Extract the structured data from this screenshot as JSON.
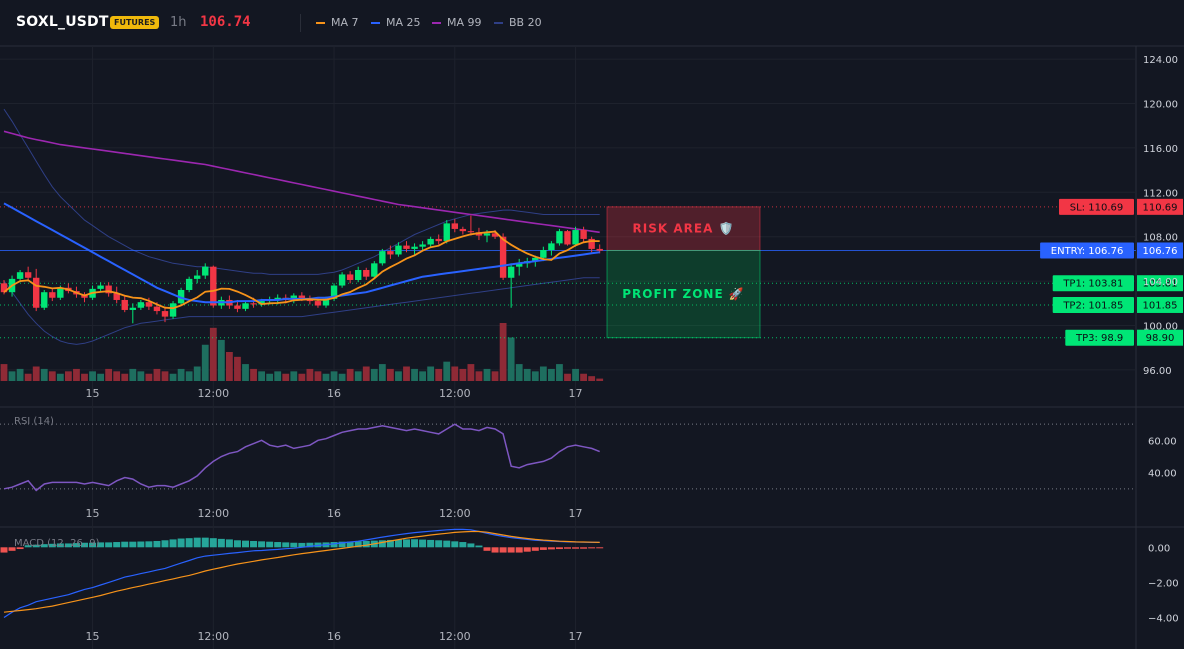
{
  "header": {
    "symbol": "SOXL_USDT",
    "badge": "FUTURES",
    "timeframe": "1h",
    "price": "106.74",
    "legend": [
      {
        "label": "MA 7",
        "color": "#f7931a"
      },
      {
        "label": "MA 25",
        "color": "#2962ff"
      },
      {
        "label": "MA 99",
        "color": "#9c27b0"
      },
      {
        "label": "BB 20",
        "color": "#2f3f86"
      }
    ]
  },
  "colors": {
    "background": "#131722",
    "up": "#00e676",
    "down": "#f23645",
    "vol_up": "#1e6e5f",
    "vol_down": "#8f2a36",
    "rsi": "#7e57c2",
    "macd": "#2962ff",
    "signal": "#f7931a",
    "hist_pos": "#26a69a",
    "hist_neg": "#ef5350"
  },
  "annotations": {
    "risk_label": "RISK AREA 🛡️",
    "profit_label": "PROFIT ZONE 🚀",
    "levels": [
      {
        "label": "SL: 110.69",
        "value": 110.69,
        "tag": "110.69",
        "color": "#f23645",
        "line": "#f23645"
      },
      {
        "label": "ENTRY: 106.76",
        "value": 106.76,
        "tag": "106.76",
        "color": "#2962ff",
        "line": "#2962ff"
      },
      {
        "label": "TP1: 103.81",
        "value": 103.81,
        "tag": "103.81",
        "color": "#00e676",
        "line": "#00e676"
      },
      {
        "label": "TP2: 101.85",
        "value": 101.85,
        "tag": "101.85",
        "color": "#00e676",
        "line": "#00e676"
      },
      {
        "label": "TP3: 98.9",
        "value": 98.9,
        "tag": "98.90",
        "color": "#00e676",
        "line": "#00e676"
      }
    ]
  },
  "chart_data": [
    {
      "type": "candlestick",
      "title": "SOXL_USDT 1h",
      "ylim": [
        95,
        125
      ],
      "yticks": [
        96,
        100,
        104,
        108,
        112,
        116,
        120,
        124
      ],
      "ytick_labels": [
        "96.00",
        "100.00",
        "104.00",
        "108.00",
        "112.00",
        "116.00",
        "120.00",
        "124.00"
      ],
      "x_labels": [
        {
          "label": "15",
          "index": 11
        },
        {
          "label": "12:00",
          "index": 26
        },
        {
          "label": "16",
          "index": 41
        },
        {
          "label": "12:00",
          "index": 56
        },
        {
          "label": "17",
          "index": 71
        }
      ],
      "candles": [
        [
          103.8,
          104.1,
          102.8,
          103.0
        ],
        [
          103.0,
          104.5,
          102.6,
          104.2
        ],
        [
          104.2,
          105.0,
          103.9,
          104.8
        ],
        [
          104.8,
          105.3,
          104.0,
          104.3
        ],
        [
          104.3,
          105.1,
          101.3,
          101.6
        ],
        [
          101.6,
          103.2,
          101.4,
          103.0
        ],
        [
          103.0,
          103.4,
          102.2,
          102.5
        ],
        [
          102.5,
          103.6,
          102.3,
          103.4
        ],
        [
          103.4,
          103.8,
          102.9,
          103.1
        ],
        [
          103.1,
          103.5,
          102.5,
          102.8
        ],
        [
          102.8,
          103.0,
          102.1,
          102.5
        ],
        [
          102.5,
          103.6,
          102.3,
          103.3
        ],
        [
          103.3,
          103.9,
          103.0,
          103.6
        ],
        [
          103.6,
          103.9,
          102.6,
          102.9
        ],
        [
          102.9,
          103.5,
          102.0,
          102.3
        ],
        [
          102.3,
          102.7,
          101.2,
          101.4
        ],
        [
          101.4,
          102.0,
          100.2,
          101.6
        ],
        [
          101.6,
          102.3,
          101.4,
          102.1
        ],
        [
          102.1,
          102.5,
          101.4,
          101.7
        ],
        [
          101.7,
          102.1,
          101.0,
          101.3
        ],
        [
          101.3,
          101.7,
          100.3,
          100.8
        ],
        [
          100.8,
          102.2,
          100.6,
          102.0
        ],
        [
          102.0,
          103.4,
          101.8,
          103.2
        ],
        [
          103.2,
          104.4,
          103.0,
          104.2
        ],
        [
          104.2,
          105.0,
          103.8,
          104.5
        ],
        [
          104.5,
          105.6,
          104.2,
          105.3
        ],
        [
          105.3,
          105.4,
          101.6,
          101.8
        ],
        [
          101.8,
          102.6,
          101.5,
          102.3
        ],
        [
          102.3,
          102.7,
          101.5,
          101.8
        ],
        [
          101.8,
          102.3,
          101.2,
          101.5
        ],
        [
          101.5,
          102.2,
          101.3,
          102.0
        ],
        [
          102.0,
          102.5,
          101.6,
          101.9
        ],
        [
          101.9,
          102.4,
          101.7,
          102.2
        ],
        [
          102.2,
          102.6,
          101.9,
          102.3
        ],
        [
          102.3,
          102.8,
          101.9,
          102.5
        ],
        [
          102.5,
          102.8,
          102.0,
          102.3
        ],
        [
          102.3,
          102.9,
          102.0,
          102.7
        ],
        [
          102.7,
          103.0,
          102.2,
          102.4
        ],
        [
          102.4,
          102.7,
          101.9,
          102.2
        ],
        [
          102.2,
          102.5,
          101.6,
          101.8
        ],
        [
          101.8,
          102.6,
          101.6,
          102.4
        ],
        [
          102.4,
          103.8,
          102.2,
          103.6
        ],
        [
          103.6,
          104.8,
          103.4,
          104.6
        ],
        [
          104.6,
          104.9,
          103.8,
          104.1
        ],
        [
          104.1,
          105.3,
          103.9,
          105.0
        ],
        [
          105.0,
          105.2,
          104.1,
          104.4
        ],
        [
          104.4,
          105.8,
          104.2,
          105.6
        ],
        [
          105.6,
          106.9,
          105.4,
          106.7
        ],
        [
          106.7,
          107.2,
          106.0,
          106.4
        ],
        [
          106.4,
          107.5,
          106.2,
          107.2
        ],
        [
          107.2,
          107.6,
          106.6,
          106.9
        ],
        [
          106.9,
          107.4,
          106.4,
          107.1
        ],
        [
          107.1,
          107.6,
          106.7,
          107.3
        ],
        [
          107.3,
          108.0,
          107.0,
          107.8
        ],
        [
          107.8,
          108.2,
          107.3,
          107.6
        ],
        [
          107.6,
          109.5,
          107.4,
          109.2
        ],
        [
          109.2,
          109.6,
          108.4,
          108.7
        ],
        [
          108.7,
          108.9,
          108.2,
          108.5
        ],
        [
          108.5,
          109.9,
          108.1,
          108.4
        ],
        [
          108.4,
          108.8,
          107.7,
          108.1
        ],
        [
          108.1,
          108.6,
          107.5,
          108.3
        ],
        [
          108.3,
          108.6,
          107.8,
          108.0
        ],
        [
          108.0,
          108.3,
          104.1,
          104.3
        ],
        [
          104.3,
          105.6,
          101.6,
          105.3
        ],
        [
          105.3,
          106.0,
          104.5,
          105.6
        ],
        [
          105.6,
          106.1,
          105.2,
          105.8
        ],
        [
          105.8,
          106.3,
          105.3,
          106.1
        ],
        [
          106.1,
          107.1,
          105.8,
          106.8
        ],
        [
          106.8,
          107.6,
          106.3,
          107.4
        ],
        [
          107.4,
          108.7,
          107.2,
          108.5
        ],
        [
          108.5,
          108.6,
          107.2,
          107.3
        ],
        [
          107.3,
          108.9,
          107.1,
          108.6
        ],
        [
          108.6,
          108.9,
          107.5,
          107.8
        ],
        [
          107.8,
          108.0,
          106.6,
          106.9
        ],
        [
          106.9,
          107.3,
          106.5,
          106.74
        ]
      ],
      "volume": [
        7,
        4,
        5,
        3,
        6,
        5,
        4,
        3,
        4,
        5,
        3,
        4,
        3,
        5,
        4,
        3,
        5,
        4,
        3,
        5,
        4,
        3,
        5,
        4,
        6,
        15,
        22,
        17,
        12,
        10,
        7,
        5,
        4,
        3,
        4,
        3,
        4,
        3,
        5,
        4,
        3,
        4,
        3,
        5,
        4,
        6,
        5,
        7,
        5,
        4,
        6,
        5,
        4,
        6,
        5,
        8,
        6,
        5,
        7,
        4,
        5,
        4,
        24,
        18,
        7,
        5,
        4,
        6,
        5,
        7,
        3,
        5,
        3,
        2,
        1
      ],
      "ma99": [
        117.5,
        117.3,
        117.1,
        116.9,
        116.75,
        116.6,
        116.45,
        116.3,
        116.2,
        116.1,
        116.0,
        115.9,
        115.8,
        115.7,
        115.6,
        115.5,
        115.4,
        115.3,
        115.2,
        115.1,
        115.0,
        114.9,
        114.8,
        114.7,
        114.6,
        114.5,
        114.35,
        114.2,
        114.05,
        113.9,
        113.75,
        113.6,
        113.45,
        113.3,
        113.15,
        113.0,
        112.85,
        112.7,
        112.55,
        112.4,
        112.25,
        112.1,
        111.95,
        111.8,
        111.65,
        111.5,
        111.35,
        111.2,
        111.05,
        110.9,
        110.8,
        110.7,
        110.6,
        110.5,
        110.4,
        110.3,
        110.2,
        110.1,
        110.0,
        109.9,
        109.8,
        109.7,
        109.6,
        109.5,
        109.4,
        109.3,
        109.2,
        109.1,
        109.0,
        108.9,
        108.8,
        108.7,
        108.6,
        108.5,
        108.4
      ],
      "bb_upper": [
        119.5,
        118.4,
        117.2,
        116.0,
        114.8,
        113.6,
        112.5,
        111.6,
        110.9,
        110.2,
        109.5,
        109.0,
        108.5,
        108.0,
        107.6,
        107.2,
        106.8,
        106.5,
        106.2,
        106.0,
        105.8,
        105.6,
        105.5,
        105.4,
        105.3,
        105.3,
        105.2,
        105.1,
        105.0,
        104.9,
        104.8,
        104.7,
        104.7,
        104.6,
        104.6,
        104.6,
        104.6,
        104.6,
        104.6,
        104.6,
        104.7,
        104.8,
        105.0,
        105.3,
        105.6,
        105.9,
        106.2,
        106.6,
        107.0,
        107.4,
        107.8,
        108.2,
        108.5,
        108.8,
        109.1,
        109.4,
        109.6,
        109.8,
        110.0,
        110.1,
        110.2,
        110.3,
        110.4,
        110.4,
        110.3,
        110.2,
        110.1,
        110.0,
        110.0,
        110.0,
        110.0,
        110.0,
        110.0,
        110.0,
        110.0
      ],
      "bb_lower": [
        104.0,
        103.0,
        102.0,
        101.0,
        100.2,
        99.5,
        99.0,
        98.6,
        98.4,
        98.3,
        98.4,
        98.6,
        98.9,
        99.2,
        99.5,
        99.8,
        100.0,
        100.2,
        100.3,
        100.4,
        100.5,
        100.6,
        100.7,
        100.8,
        100.8,
        100.8,
        100.8,
        100.8,
        100.8,
        100.8,
        100.8,
        100.8,
        100.8,
        100.8,
        100.8,
        100.8,
        100.8,
        100.8,
        100.9,
        101.0,
        101.1,
        101.2,
        101.3,
        101.4,
        101.5,
        101.6,
        101.7,
        101.8,
        101.9,
        102.0,
        102.1,
        102.2,
        102.3,
        102.4,
        102.5,
        102.6,
        102.7,
        102.8,
        102.9,
        103.0,
        103.1,
        103.2,
        103.3,
        103.4,
        103.5,
        103.6,
        103.7,
        103.8,
        103.9,
        104.0,
        104.1,
        104.2,
        104.3,
        104.3,
        104.3
      ],
      "ma25": [
        111.0,
        110.6,
        110.2,
        109.8,
        109.4,
        109.0,
        108.6,
        108.2,
        107.8,
        107.4,
        107.0,
        106.6,
        106.2,
        105.8,
        105.4,
        105.0,
        104.6,
        104.2,
        103.8,
        103.4,
        103.1,
        102.8,
        102.5,
        102.3,
        102.2,
        102.1,
        102.1,
        102.1,
        102.1,
        102.2,
        102.2,
        102.2,
        102.3,
        102.3,
        102.3,
        102.4,
        102.4,
        102.4,
        102.4,
        102.5,
        102.5,
        102.6,
        102.7,
        102.8,
        102.9,
        103.0,
        103.2,
        103.4,
        103.6,
        103.8,
        104.0,
        104.2,
        104.4,
        104.5,
        104.6,
        104.7,
        104.8,
        104.9,
        105.0,
        105.1,
        105.2,
        105.3,
        105.4,
        105.5,
        105.6,
        105.7,
        105.8,
        105.9,
        106.0,
        106.1,
        106.2,
        106.3,
        106.4,
        106.5,
        106.6
      ]
    },
    {
      "type": "line",
      "title": "RSI (14)",
      "ylim": [
        20,
        80
      ],
      "yticks": [
        40,
        60
      ],
      "ytick_labels": [
        "40.00",
        "60.00"
      ],
      "levels": [
        70,
        30
      ],
      "values": [
        30,
        31,
        33,
        35,
        29,
        33,
        34,
        34,
        34,
        34,
        33,
        34,
        33,
        32,
        35,
        37,
        36,
        33,
        31,
        32,
        32,
        31,
        33,
        35,
        38,
        43,
        47,
        50,
        52,
        53,
        56,
        58,
        60,
        57,
        56,
        57,
        55,
        56,
        57,
        60,
        61,
        63,
        65,
        66,
        67,
        67,
        68,
        69,
        68,
        67,
        66,
        67,
        66,
        65,
        64,
        67,
        70,
        67,
        67,
        66,
        68,
        67,
        64,
        44,
        43,
        45,
        46,
        47,
        49,
        53,
        56,
        57,
        56,
        55,
        53
      ]
    },
    {
      "type": "line",
      "title": "MACD (12, 26, 9)",
      "ylim": [
        -4.6,
        1.1
      ],
      "yticks": [
        0,
        -2,
        -4
      ],
      "ytick_labels": [
        "0.00",
        "−2.00",
        "−4.00"
      ],
      "macd": [
        -4.0,
        -3.7,
        -3.45,
        -3.3,
        -3.1,
        -3.0,
        -2.9,
        -2.8,
        -2.7,
        -2.55,
        -2.4,
        -2.3,
        -2.15,
        -2.0,
        -1.85,
        -1.7,
        -1.6,
        -1.5,
        -1.4,
        -1.3,
        -1.2,
        -1.05,
        -0.9,
        -0.75,
        -0.6,
        -0.5,
        -0.45,
        -0.4,
        -0.35,
        -0.3,
        -0.25,
        -0.2,
        -0.18,
        -0.15,
        -0.12,
        -0.08,
        -0.05,
        0.0,
        0.05,
        0.1,
        0.15,
        0.2,
        0.25,
        0.3,
        0.35,
        0.42,
        0.5,
        0.58,
        0.65,
        0.72,
        0.78,
        0.84,
        0.88,
        0.92,
        0.96,
        1.0,
        1.02,
        1.02,
        1.0,
        0.9,
        0.8,
        0.7,
        0.62,
        0.55,
        0.5,
        0.45,
        0.4,
        0.38,
        0.35,
        0.33,
        0.31,
        0.3,
        0.29,
        0.28,
        0.28
      ],
      "signal": [
        -3.7,
        -3.65,
        -3.6,
        -3.55,
        -3.5,
        -3.42,
        -3.35,
        -3.25,
        -3.15,
        -3.05,
        -2.95,
        -2.85,
        -2.75,
        -2.62,
        -2.5,
        -2.4,
        -2.3,
        -2.2,
        -2.1,
        -2.0,
        -1.9,
        -1.8,
        -1.7,
        -1.6,
        -1.48,
        -1.35,
        -1.25,
        -1.15,
        -1.05,
        -0.95,
        -0.88,
        -0.8,
        -0.72,
        -0.65,
        -0.58,
        -0.5,
        -0.43,
        -0.36,
        -0.3,
        -0.24,
        -0.18,
        -0.12,
        -0.06,
        0.0,
        0.06,
        0.12,
        0.2,
        0.28,
        0.36,
        0.44,
        0.52,
        0.58,
        0.64,
        0.7,
        0.75,
        0.8,
        0.85,
        0.88,
        0.9,
        0.9,
        0.86,
        0.78,
        0.7,
        0.62,
        0.56,
        0.5,
        0.45,
        0.41,
        0.38,
        0.35,
        0.33,
        0.31,
        0.3,
        0.29,
        0.28
      ],
      "histogram": [
        -0.3,
        -0.2,
        -0.1,
        0.12,
        0.15,
        0.18,
        0.2,
        0.22,
        0.22,
        0.24,
        0.26,
        0.26,
        0.28,
        0.28,
        0.3,
        0.32,
        0.32,
        0.33,
        0.34,
        0.36,
        0.4,
        0.45,
        0.5,
        0.52,
        0.55,
        0.55,
        0.52,
        0.48,
        0.45,
        0.4,
        0.38,
        0.36,
        0.34,
        0.32,
        0.3,
        0.28,
        0.26,
        0.25,
        0.26,
        0.27,
        0.28,
        0.3,
        0.32,
        0.33,
        0.34,
        0.36,
        0.38,
        0.4,
        0.42,
        0.44,
        0.45,
        0.46,
        0.44,
        0.42,
        0.4,
        0.38,
        0.34,
        0.3,
        0.22,
        0.1,
        -0.2,
        -0.3,
        -0.3,
        -0.3,
        -0.3,
        -0.25,
        -0.2,
        -0.15,
        -0.12,
        -0.1,
        -0.08,
        -0.08,
        -0.08,
        -0.06,
        -0.05
      ]
    }
  ]
}
